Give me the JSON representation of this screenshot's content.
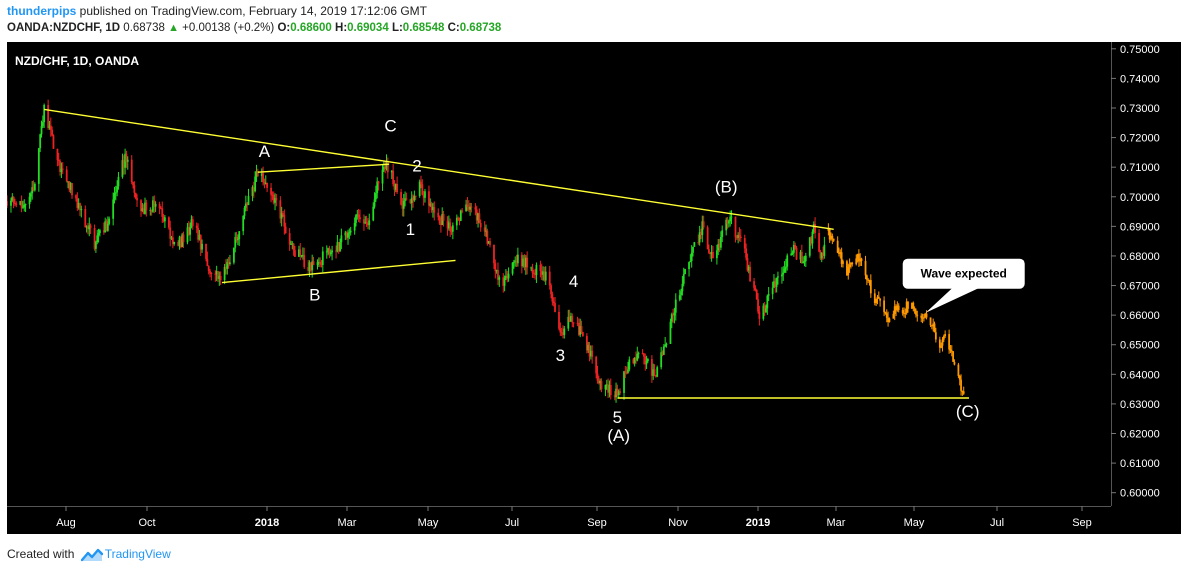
{
  "header": {
    "author": "thunderpips",
    "published": "published on TradingView.com, February 14, 2019 17:12:06 GMT",
    "symbol": "OANDA:NZDCHF, 1D",
    "last": "0.68738",
    "change": "+0.00138 (+0.2%)",
    "open_label": "O:",
    "open": "0.68600",
    "high_label": "H:",
    "high": "0.69034",
    "low_label": "L:",
    "low": "0.68548",
    "close_label": "C:",
    "close": "0.68738"
  },
  "footer": {
    "created_with": "Created with",
    "brand": "TradingView"
  },
  "colors": {
    "background": "#000000",
    "up": "#22dd22",
    "down": "#ee2222",
    "projection": "#ff9900",
    "trendline": "#ffff33",
    "label": "#ffffff"
  },
  "chart_data": {
    "type": "candlestick",
    "title": "NZD/CHF, 1D, OANDA",
    "x_ticks": [
      "Aug",
      "Oct",
      "2018",
      "Mar",
      "May",
      "Jul",
      "Sep",
      "Nov",
      "2019",
      "Mar",
      "May",
      "Jul",
      "Sep"
    ],
    "y_ticks": [
      "0.75000",
      "0.74000",
      "0.73000",
      "0.72000",
      "0.71000",
      "0.70000",
      "0.69000",
      "0.68000",
      "0.67000",
      "0.66000",
      "0.65000",
      "0.64000",
      "0.63000",
      "0.62000",
      "0.61000",
      "0.60000"
    ],
    "ylim": [
      0.5955,
      0.7523
    ],
    "x_range": [
      "2017-07-07",
      "2019-10-17"
    ],
    "price_path": [
      [
        "2017-07-07",
        0.6985
      ],
      [
        "2017-07-20",
        0.6975
      ],
      [
        "2017-07-27",
        0.703
      ],
      [
        "2017-08-04",
        0.7295
      ],
      [
        "2017-08-16",
        0.71
      ],
      [
        "2017-08-28",
        0.699
      ],
      [
        "2017-09-11",
        0.6845
      ],
      [
        "2017-09-20",
        0.6905
      ],
      [
        "2017-10-04",
        0.7135
      ],
      [
        "2017-10-16",
        0.6955
      ],
      [
        "2017-10-28",
        0.698
      ],
      [
        "2017-11-11",
        0.682
      ],
      [
        "2017-11-24",
        0.691
      ],
      [
        "2017-12-07",
        0.676
      ],
      [
        "2017-12-16",
        0.672
      ],
      [
        "2017-12-29",
        0.689
      ],
      [
        "2018-01-12",
        0.708
      ],
      [
        "2018-01-26",
        0.6985
      ],
      [
        "2018-02-07",
        0.683
      ],
      [
        "2018-02-18",
        0.6765
      ],
      [
        "2018-03-01",
        0.679
      ],
      [
        "2018-03-15",
        0.684
      ],
      [
        "2018-03-27",
        0.693
      ],
      [
        "2018-04-05",
        0.69
      ],
      [
        "2018-04-16",
        0.7105
      ],
      [
        "2018-04-23",
        0.708
      ],
      [
        "2018-04-30",
        0.696
      ],
      [
        "2018-05-14",
        0.7035
      ],
      [
        "2018-05-26",
        0.6935
      ],
      [
        "2018-06-09",
        0.6895
      ],
      [
        "2018-06-19",
        0.6985
      ],
      [
        "2018-07-01",
        0.6895
      ],
      [
        "2018-07-15",
        0.6685
      ],
      [
        "2018-07-23",
        0.679
      ],
      [
        "2018-08-03",
        0.677
      ],
      [
        "2018-08-18",
        0.673
      ],
      [
        "2018-08-28",
        0.653
      ],
      [
        "2018-09-03",
        0.6605
      ],
      [
        "2018-09-15",
        0.652
      ],
      [
        "2018-09-28",
        0.6365
      ],
      [
        "2018-10-10",
        0.6335
      ],
      [
        "2018-10-18",
        0.643
      ],
      [
        "2018-10-27",
        0.6485
      ],
      [
        "2018-11-07",
        0.639
      ],
      [
        "2018-11-19",
        0.657
      ],
      [
        "2018-12-01",
        0.676
      ],
      [
        "2018-12-13",
        0.6895
      ],
      [
        "2018-12-21",
        0.6785
      ],
      [
        "2019-01-02",
        0.6935
      ],
      [
        "2019-01-14",
        0.681
      ],
      [
        "2019-01-26",
        0.659
      ],
      [
        "2019-02-07",
        0.672
      ],
      [
        "2019-02-19",
        0.682
      ],
      [
        "2019-03-01",
        0.678
      ],
      [
        "2019-03-07",
        0.69
      ],
      [
        "2019-03-13",
        0.679
      ],
      [
        "2019-03-17",
        0.6885
      ]
    ],
    "projection_path": [
      [
        "2019-03-17",
        0.6885
      ],
      [
        "2019-03-25",
        0.682
      ],
      [
        "2019-04-01",
        0.674
      ],
      [
        "2019-04-08",
        0.68
      ],
      [
        "2019-04-14",
        0.676
      ],
      [
        "2019-04-21",
        0.666
      ],
      [
        "2019-04-27",
        0.665
      ],
      [
        "2019-05-02",
        0.658
      ],
      [
        "2019-05-09",
        0.663
      ],
      [
        "2019-05-14",
        0.662
      ],
      [
        "2019-05-19",
        0.664
      ],
      [
        "2019-05-25",
        0.659
      ],
      [
        "2019-05-30",
        0.661
      ],
      [
        "2019-06-05",
        0.656
      ],
      [
        "2019-06-09",
        0.65
      ],
      [
        "2019-06-14",
        0.6525
      ],
      [
        "2019-06-19",
        0.647
      ],
      [
        "2019-06-24",
        0.638
      ],
      [
        "2019-06-28",
        0.6325
      ]
    ],
    "trendlines": [
      {
        "from": [
          "2017-08-04",
          0.7295
        ],
        "to": [
          "2019-03-22",
          0.689
        ]
      },
      {
        "from": [
          "2018-01-12",
          0.7083
        ],
        "to": [
          "2018-04-21",
          0.711
        ]
      },
      {
        "from": [
          "2017-12-16",
          0.671
        ],
        "to": [
          "2018-06-10",
          0.6785
        ]
      },
      {
        "from": [
          "2018-10-10",
          0.632
        ],
        "to": [
          "2019-07-02",
          0.632
        ]
      }
    ],
    "wave_labels": [
      {
        "text": "A",
        "x": "2018-01-17",
        "y": 0.7135
      },
      {
        "text": "B",
        "x": "2018-02-24",
        "y": 0.665
      },
      {
        "text": "C",
        "x": "2018-04-22",
        "y": 0.722
      },
      {
        "text": "2",
        "x": "2018-05-12",
        "y": 0.7085
      },
      {
        "text": "1",
        "x": "2018-05-07",
        "y": 0.687
      },
      {
        "text": "4",
        "x": "2018-09-07",
        "y": 0.6695
      },
      {
        "text": "3",
        "x": "2018-08-28",
        "y": 0.6445
      },
      {
        "text": "5",
        "x": "2018-10-10",
        "y": 0.6235
      },
      {
        "text": "(A)",
        "x": "2018-10-11",
        "y": 0.6175
      },
      {
        "text": "(B)",
        "x": "2018-12-31",
        "y": 0.7015
      },
      {
        "text": "(C)",
        "x": "2019-07-01",
        "y": 0.6255
      }
    ],
    "callout": {
      "text": "Wave expected",
      "x": "2019-06-28",
      "y": 0.674
    }
  }
}
